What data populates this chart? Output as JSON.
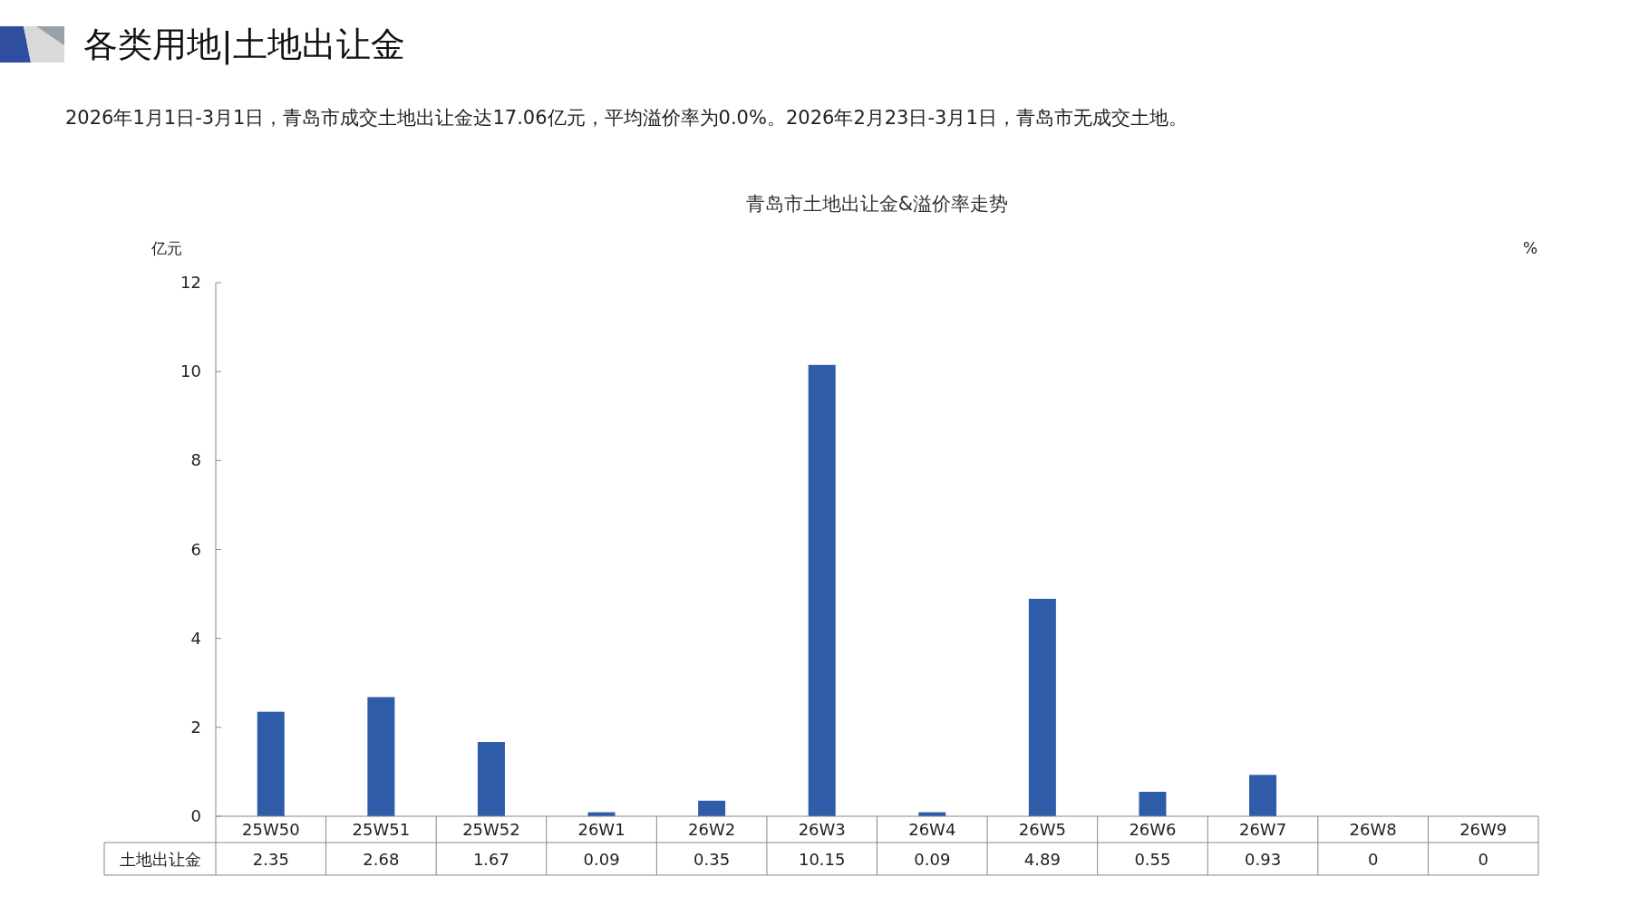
{
  "chart_data": {
    "type": "bar",
    "title": "青岛市土地出让金&溢价率走势",
    "annotations": [
      "各类用地|土地出让金",
      "2026年1月1日-3月1日，青岛市成交土地出让金达17.06亿元，平均溢价率为0.0%。2026年2月23日-3月1日，青岛市无成交土地。"
    ],
    "ylabel": "亿元",
    "y2label": "%",
    "categories": [
      "25W50",
      "25W51",
      "25W52",
      "26W1",
      "26W2",
      "26W3",
      "26W4",
      "26W5",
      "26W6",
      "26W7",
      "26W8",
      "26W9"
    ],
    "series": [
      {
        "name": "土地出让金",
        "color": "#2f5ca8",
        "values": [
          2.35,
          2.68,
          1.67,
          0.09,
          0.35,
          10.15,
          0.09,
          4.89,
          0.55,
          0.93,
          0,
          0
        ]
      }
    ],
    "value_labels": [
      "2.35",
      "2.68",
      "1.67",
      "0.09",
      "0.35",
      "10.15",
      "0.09",
      "4.89",
      "0.55",
      "0.93",
      "0",
      "0"
    ],
    "ylim": [
      0,
      12
    ],
    "yticks": [
      0,
      2,
      4,
      6,
      8,
      10,
      12
    ]
  }
}
